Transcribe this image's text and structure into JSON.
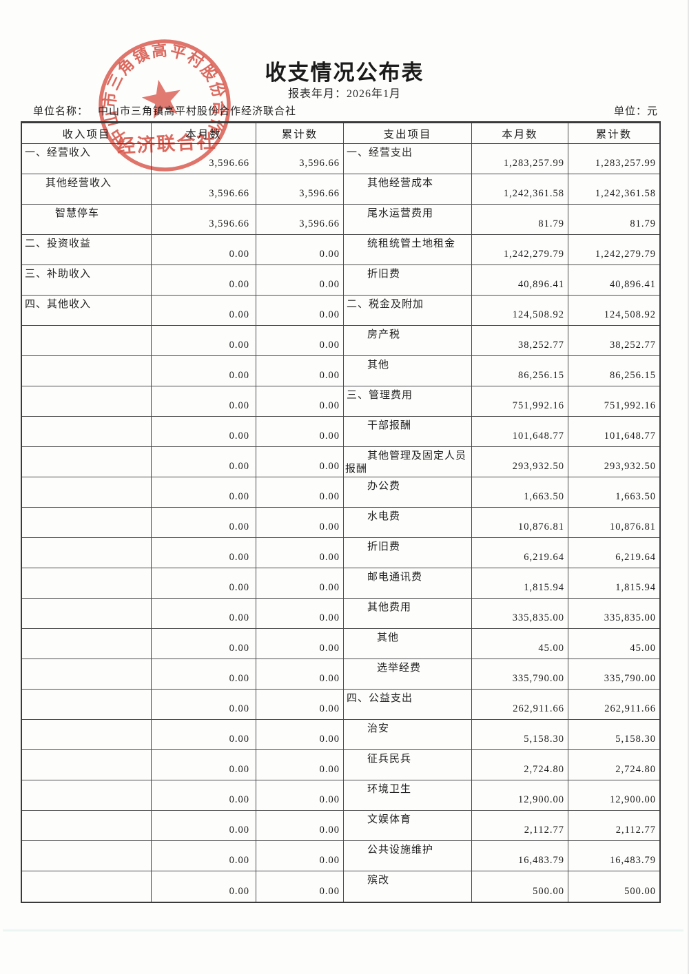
{
  "doc": {
    "title": "收支情况公布表",
    "period_label": "报表年月：",
    "period_value": "2026年1月",
    "org_label": "单位名称：",
    "org_value": "中山市三角镇高平村股份合作经济联合社",
    "currency_label": "单位：",
    "currency_value": "元"
  },
  "stamp": {
    "arc_text": "中山市三角镇高平村股份合作",
    "bottom_text": "经济联合社",
    "color": "#d7473a",
    "star_icon": "five-pointed-star"
  },
  "table": {
    "headers": [
      "收入项目",
      "本月数",
      "累计数",
      "支出项目",
      "本月数",
      "累计数"
    ],
    "rows": [
      {
        "income": {
          "item": "一、经营收入",
          "indent": 0,
          "month": "3,596.66",
          "cumulative": "3,596.66"
        },
        "expense": {
          "item": "一、经营支出",
          "indent": 0,
          "month": "1,283,257.99",
          "cumulative": "1,283,257.99"
        }
      },
      {
        "income": {
          "item": "其他经营收入",
          "indent": 1,
          "month": "3,596.66",
          "cumulative": "3,596.66"
        },
        "expense": {
          "item": "其他经营成本",
          "indent": 1,
          "month": "1,242,361.58",
          "cumulative": "1,242,361.58"
        }
      },
      {
        "income": {
          "item": "智慧停车",
          "indent": 2,
          "month": "3,596.66",
          "cumulative": "3,596.66"
        },
        "expense": {
          "item": "尾水运营费用",
          "indent": 1,
          "month": "81.79",
          "cumulative": "81.79"
        }
      },
      {
        "income": {
          "item": "二、投资收益",
          "indent": 0,
          "month": "0.00",
          "cumulative": "0.00"
        },
        "expense": {
          "item": "统租统管土地租金",
          "indent": 1,
          "month": "1,242,279.79",
          "cumulative": "1,242,279.79"
        }
      },
      {
        "income": {
          "item": "三、补助收入",
          "indent": 0,
          "month": "0.00",
          "cumulative": "0.00"
        },
        "expense": {
          "item": "折旧费",
          "indent": 1,
          "month": "40,896.41",
          "cumulative": "40,896.41"
        }
      },
      {
        "income": {
          "item": "四、其他收入",
          "indent": 0,
          "month": "0.00",
          "cumulative": "0.00"
        },
        "expense": {
          "item": "二、税金及附加",
          "indent": 0,
          "month": "124,508.92",
          "cumulative": "124,508.92"
        }
      },
      {
        "income": {
          "item": "",
          "indent": 0,
          "month": "0.00",
          "cumulative": "0.00"
        },
        "expense": {
          "item": "房产税",
          "indent": 1,
          "month": "38,252.77",
          "cumulative": "38,252.77"
        }
      },
      {
        "income": {
          "item": "",
          "indent": 0,
          "month": "0.00",
          "cumulative": "0.00"
        },
        "expense": {
          "item": "其他",
          "indent": 1,
          "month": "86,256.15",
          "cumulative": "86,256.15"
        }
      },
      {
        "income": {
          "item": "",
          "indent": 0,
          "month": "0.00",
          "cumulative": "0.00"
        },
        "expense": {
          "item": "三、管理费用",
          "indent": 0,
          "month": "751,992.16",
          "cumulative": "751,992.16"
        }
      },
      {
        "income": {
          "item": "",
          "indent": 0,
          "month": "0.00",
          "cumulative": "0.00"
        },
        "expense": {
          "item": "干部报酬",
          "indent": 1,
          "month": "101,648.77",
          "cumulative": "101,648.77"
        }
      },
      {
        "income": {
          "item": "",
          "indent": 0,
          "month": "0.00",
          "cumulative": "0.00"
        },
        "expense": {
          "item": "其他管理及固定人员报酬",
          "indent": 1,
          "month": "293,932.50",
          "cumulative": "293,932.50"
        }
      },
      {
        "income": {
          "item": "",
          "indent": 0,
          "month": "0.00",
          "cumulative": "0.00"
        },
        "expense": {
          "item": "办公费",
          "indent": 1,
          "month": "1,663.50",
          "cumulative": "1,663.50"
        }
      },
      {
        "income": {
          "item": "",
          "indent": 0,
          "month": "0.00",
          "cumulative": "0.00"
        },
        "expense": {
          "item": "水电费",
          "indent": 1,
          "month": "10,876.81",
          "cumulative": "10,876.81"
        }
      },
      {
        "income": {
          "item": "",
          "indent": 0,
          "month": "0.00",
          "cumulative": "0.00"
        },
        "expense": {
          "item": "折旧费",
          "indent": 1,
          "month": "6,219.64",
          "cumulative": "6,219.64"
        }
      },
      {
        "income": {
          "item": "",
          "indent": 0,
          "month": "0.00",
          "cumulative": "0.00"
        },
        "expense": {
          "item": "邮电通讯费",
          "indent": 1,
          "month": "1,815.94",
          "cumulative": "1,815.94"
        }
      },
      {
        "income": {
          "item": "",
          "indent": 0,
          "month": "0.00",
          "cumulative": "0.00"
        },
        "expense": {
          "item": "其他费用",
          "indent": 1,
          "month": "335,835.00",
          "cumulative": "335,835.00"
        }
      },
      {
        "income": {
          "item": "",
          "indent": 0,
          "month": "0.00",
          "cumulative": "0.00"
        },
        "expense": {
          "item": "其他",
          "indent": 2,
          "month": "45.00",
          "cumulative": "45.00"
        }
      },
      {
        "income": {
          "item": "",
          "indent": 0,
          "month": "0.00",
          "cumulative": "0.00"
        },
        "expense": {
          "item": "选举经费",
          "indent": 2,
          "month": "335,790.00",
          "cumulative": "335,790.00"
        }
      },
      {
        "income": {
          "item": "",
          "indent": 0,
          "month": "0.00",
          "cumulative": "0.00"
        },
        "expense": {
          "item": "四、公益支出",
          "indent": 0,
          "month": "262,911.66",
          "cumulative": "262,911.66"
        }
      },
      {
        "income": {
          "item": "",
          "indent": 0,
          "month": "0.00",
          "cumulative": "0.00"
        },
        "expense": {
          "item": "治安",
          "indent": 1,
          "month": "5,158.30",
          "cumulative": "5,158.30"
        }
      },
      {
        "income": {
          "item": "",
          "indent": 0,
          "month": "0.00",
          "cumulative": "0.00"
        },
        "expense": {
          "item": "征兵民兵",
          "indent": 1,
          "month": "2,724.80",
          "cumulative": "2,724.80"
        }
      },
      {
        "income": {
          "item": "",
          "indent": 0,
          "month": "0.00",
          "cumulative": "0.00"
        },
        "expense": {
          "item": "环境卫生",
          "indent": 1,
          "month": "12,900.00",
          "cumulative": "12,900.00"
        }
      },
      {
        "income": {
          "item": "",
          "indent": 0,
          "month": "0.00",
          "cumulative": "0.00"
        },
        "expense": {
          "item": "文娱体育",
          "indent": 1,
          "month": "2,112.77",
          "cumulative": "2,112.77"
        }
      },
      {
        "income": {
          "item": "",
          "indent": 0,
          "month": "0.00",
          "cumulative": "0.00"
        },
        "expense": {
          "item": "公共设施维护",
          "indent": 1,
          "month": "16,483.79",
          "cumulative": "16,483.79"
        }
      },
      {
        "income": {
          "item": "",
          "indent": 0,
          "month": "0.00",
          "cumulative": "0.00"
        },
        "expense": {
          "item": "殡改",
          "indent": 1,
          "month": "500.00",
          "cumulative": "500.00"
        }
      }
    ]
  }
}
